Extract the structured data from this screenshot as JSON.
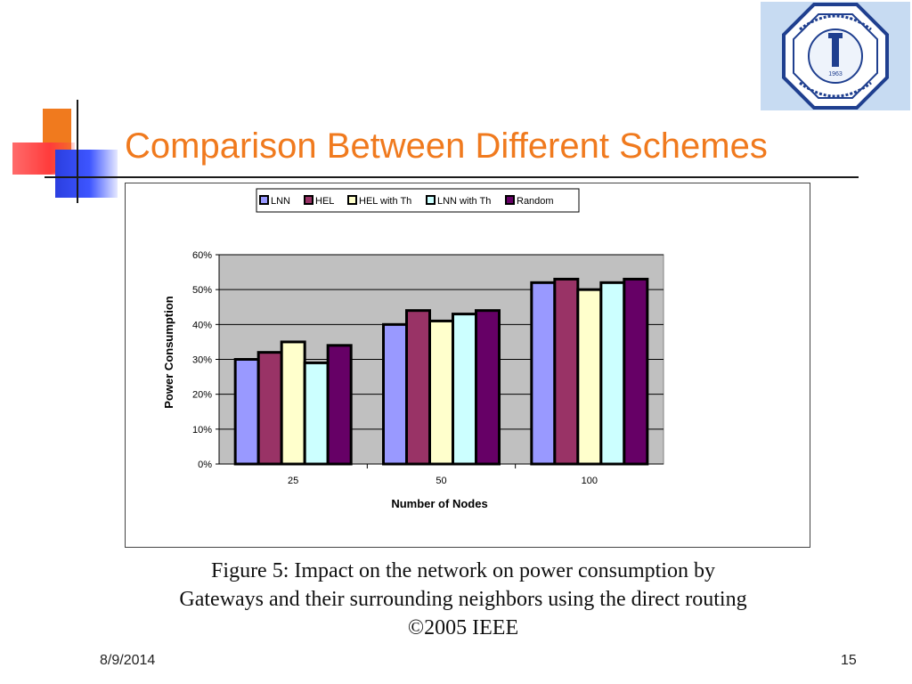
{
  "slide": {
    "title": "Comparison Between Different Schemes",
    "caption_lines": [
      "Figure 5: Impact on the network on power consumption by",
      "Gateways and their surrounding neighbors using the direct routing",
      "©2005 IEEE"
    ],
    "footer_date": "8/9/2014",
    "page_number": "15",
    "logo_year": "1963",
    "accent_color": "#f07a1e"
  },
  "chart_data": {
    "type": "bar",
    "title": "",
    "xlabel": "Number of Nodes",
    "ylabel": "Power Consumption",
    "categories": [
      "25",
      "50",
      "100"
    ],
    "ylim": [
      0,
      0.6
    ],
    "yticks": [
      "0%",
      "10%",
      "20%",
      "30%",
      "40%",
      "50%",
      "60%"
    ],
    "grid": true,
    "legend_position": "top",
    "series": [
      {
        "name": "LNN",
        "color": "#9999ff",
        "values": [
          0.3,
          0.4,
          0.52
        ]
      },
      {
        "name": "HEL",
        "color": "#993366",
        "values": [
          0.32,
          0.44,
          0.53
        ]
      },
      {
        "name": "HEL with Th",
        "color": "#ffffcc",
        "values": [
          0.35,
          0.41,
          0.5
        ]
      },
      {
        "name": "LNN with Th",
        "color": "#ccffff",
        "values": [
          0.29,
          0.43,
          0.52
        ]
      },
      {
        "name": "Random",
        "color": "#660066",
        "values": [
          0.34,
          0.44,
          0.53
        ]
      }
    ]
  }
}
